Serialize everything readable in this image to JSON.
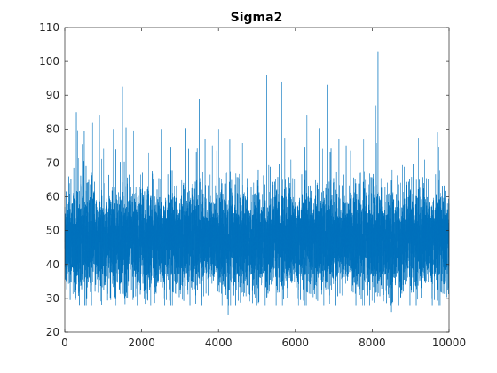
{
  "chart_data": {
    "type": "line",
    "title": "Sigma2",
    "xlabel": "",
    "ylabel": "",
    "xlim": [
      0,
      10000
    ],
    "ylim": [
      20,
      110
    ],
    "x_ticks": [
      0,
      2000,
      4000,
      6000,
      8000,
      10000
    ],
    "y_ticks": [
      20,
      30,
      40,
      50,
      60,
      70,
      80,
      90,
      100,
      110
    ],
    "x_tick_labels": [
      "0",
      "2000",
      "4000",
      "6000",
      "8000",
      "10000"
    ],
    "y_tick_labels": [
      "20",
      "30",
      "40",
      "50",
      "60",
      "70",
      "80",
      "90",
      "100",
      "110"
    ],
    "grid": false,
    "legend": "none",
    "series": [
      {
        "color": "#0072BD",
        "n_samples": 10000,
        "typical_band": [
          33,
          63
        ],
        "mean_approx": 47,
        "min_approx": 25,
        "max_approx": 103,
        "spikes": [
          {
            "x": 60,
            "y": 70
          },
          {
            "x": 300,
            "y": 85
          },
          {
            "x": 720,
            "y": 82
          },
          {
            "x": 900,
            "y": 84
          },
          {
            "x": 1500,
            "y": 92.5
          },
          {
            "x": 2500,
            "y": 80
          },
          {
            "x": 3500,
            "y": 89
          },
          {
            "x": 4000,
            "y": 80
          },
          {
            "x": 4250,
            "y": 25
          },
          {
            "x": 5250,
            "y": 96
          },
          {
            "x": 5650,
            "y": 94
          },
          {
            "x": 6300,
            "y": 84
          },
          {
            "x": 6850,
            "y": 93
          },
          {
            "x": 8100,
            "y": 87
          },
          {
            "x": 8150,
            "y": 103
          },
          {
            "x": 8500,
            "y": 26
          },
          {
            "x": 9700,
            "y": 79
          }
        ]
      }
    ]
  }
}
